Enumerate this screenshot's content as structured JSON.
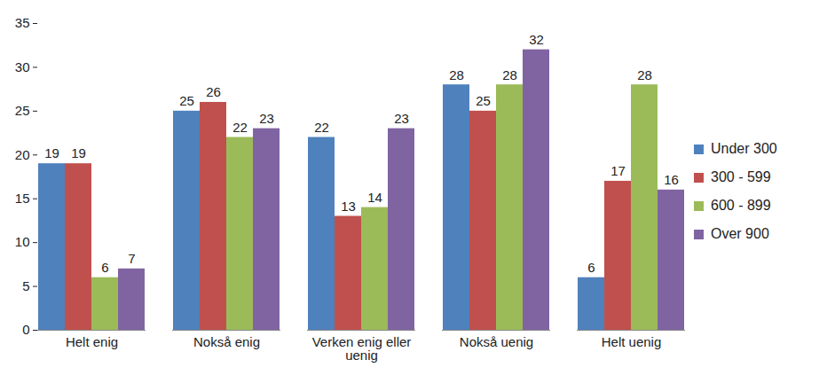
{
  "chart_data": {
    "type": "bar",
    "categories": [
      "Helt enig",
      "Nokså enig",
      "Verken enig eller uenig",
      "Nokså uenig",
      "Helt uenig"
    ],
    "series": [
      {
        "name": "Under 300",
        "color": "#4f81bd",
        "values": [
          19,
          25,
          22,
          28,
          6
        ]
      },
      {
        "name": "300 - 599",
        "color": "#c0504d",
        "values": [
          19,
          26,
          13,
          25,
          17
        ]
      },
      {
        "name": "600 - 899",
        "color": "#9bbb59",
        "values": [
          6,
          22,
          14,
          28,
          28
        ]
      },
      {
        "name": "Over 900",
        "color": "#8064a2",
        "values": [
          7,
          23,
          23,
          32,
          16
        ]
      }
    ],
    "ylim": [
      0,
      35
    ],
    "yticks": [
      0,
      5,
      10,
      15,
      20,
      25,
      30,
      35
    ],
    "grid": false,
    "data_labels": true,
    "legend": "right"
  }
}
